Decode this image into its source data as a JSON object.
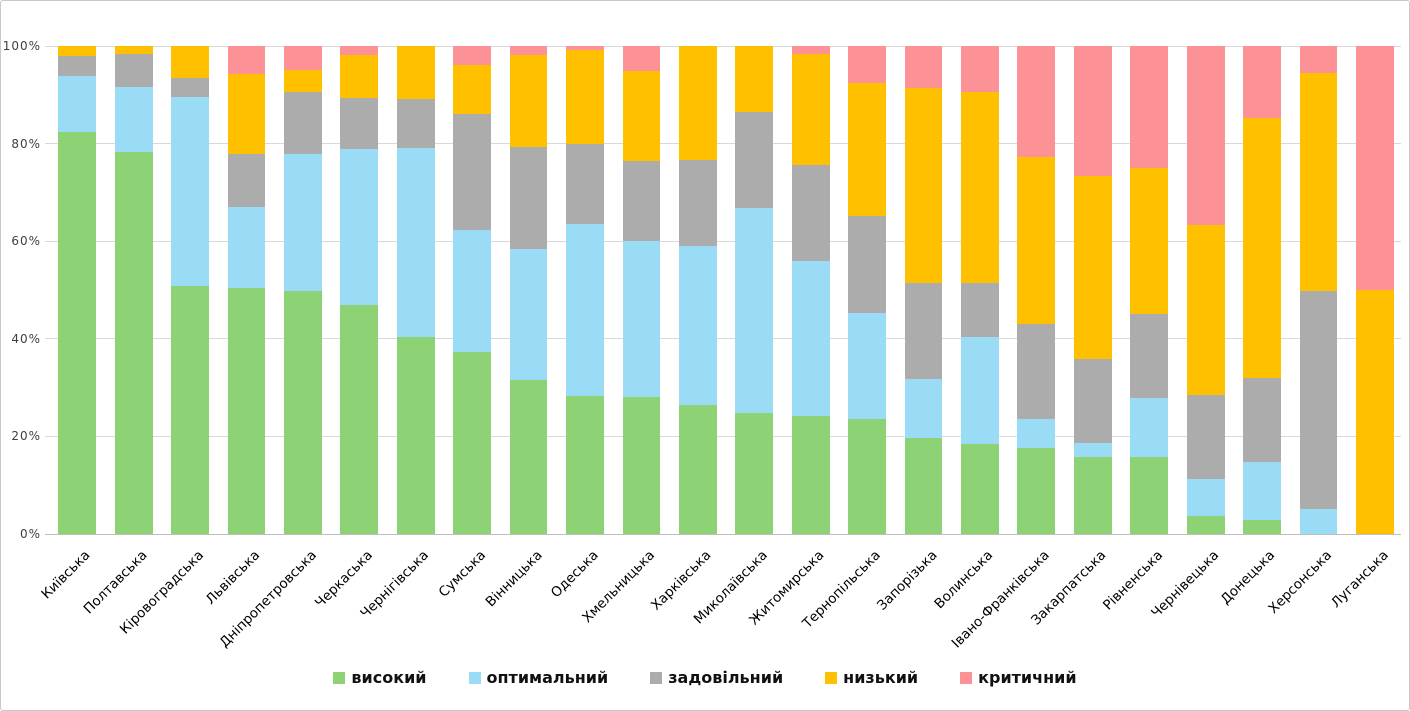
{
  "chart_data": {
    "type": "bar",
    "variant": "stacked-100-percent",
    "title": "",
    "grid": true,
    "legend_position": "bottom",
    "y_axis": {
      "min": 0,
      "max": 100,
      "tick_step": 20,
      "tick_labels": [
        "0%",
        "20%",
        "40%",
        "60%",
        "80%",
        "100%"
      ]
    },
    "categories": [
      "Київська",
      "Полтавська",
      "Кіровоградська",
      "Львівська",
      "Дніпропетровська",
      "Черкаська",
      "Чернігівська",
      "Сумська",
      "Вінницька",
      "Одеська",
      "Хмельницька",
      "Харківська",
      "Миколаївська",
      "Житомирська",
      "Тернопільська",
      "Запорізька",
      "Волинська",
      "Івано-Франківська",
      "Закарпатська",
      "Рівненська",
      "Чернівецька",
      "Донецька",
      "Херсонська",
      "Луганська"
    ],
    "series": [
      {
        "name": "високий",
        "color": "#8DD376",
        "values": [
          82.4,
          78.3,
          50.8,
          50.5,
          49.8,
          46.9,
          40.3,
          37.2,
          31.5,
          28.2,
          28.1,
          26.4,
          24.7,
          24.1,
          23.5,
          19.7,
          18.4,
          17.6,
          15.7,
          15.7,
          3.7,
          2.8,
          0,
          0
        ]
      },
      {
        "name": "оптимальний",
        "color": "#9ADCF6",
        "values": [
          11.5,
          13.3,
          38.7,
          16.5,
          28.0,
          31.9,
          38.8,
          25.2,
          27.0,
          35.3,
          32.0,
          32.7,
          42.1,
          31.9,
          21.8,
          12.0,
          22.0,
          5.9,
          2.9,
          12.2,
          7.6,
          11.9,
          5.2,
          0
        ]
      },
      {
        "name": "задовільний",
        "color": "#ACACAC",
        "values": [
          4.1,
          6.7,
          4.0,
          10.9,
          12.7,
          10.5,
          10.0,
          23.7,
          20.9,
          16.4,
          16.4,
          17.6,
          19.6,
          19.6,
          19.9,
          19.8,
          11.1,
          19.6,
          17.3,
          17.2,
          17.2,
          17.3,
          44.6,
          0
        ]
      },
      {
        "name": "низький",
        "color": "#FFC000",
        "values": [
          2.0,
          1.7,
          6.5,
          16.4,
          4.6,
          8.8,
          10.9,
          10.0,
          18.8,
          19.3,
          18.3,
          23.3,
          13.6,
          22.8,
          27.3,
          40.0,
          39.0,
          34.2,
          37.4,
          29.9,
          34.9,
          53.2,
          44.6,
          50.0
        ]
      },
      {
        "name": "критичний",
        "color": "#FC9295",
        "values": [
          0,
          0,
          0,
          5.7,
          4.9,
          1.9,
          0,
          3.9,
          1.8,
          0.8,
          5.2,
          0,
          0,
          1.6,
          7.5,
          8.5,
          9.5,
          22.7,
          26.7,
          25.0,
          36.6,
          14.8,
          5.6,
          50.0
        ]
      }
    ]
  },
  "colors": {
    "background": "#FFFFFF",
    "grid_line": "#D9D9D9",
    "axis_line": "#BFBFBF",
    "tick_text": "#3F3F3F",
    "category_text": "#000000",
    "legend_text": "#111111",
    "frame_border": "#C9C9C9"
  }
}
